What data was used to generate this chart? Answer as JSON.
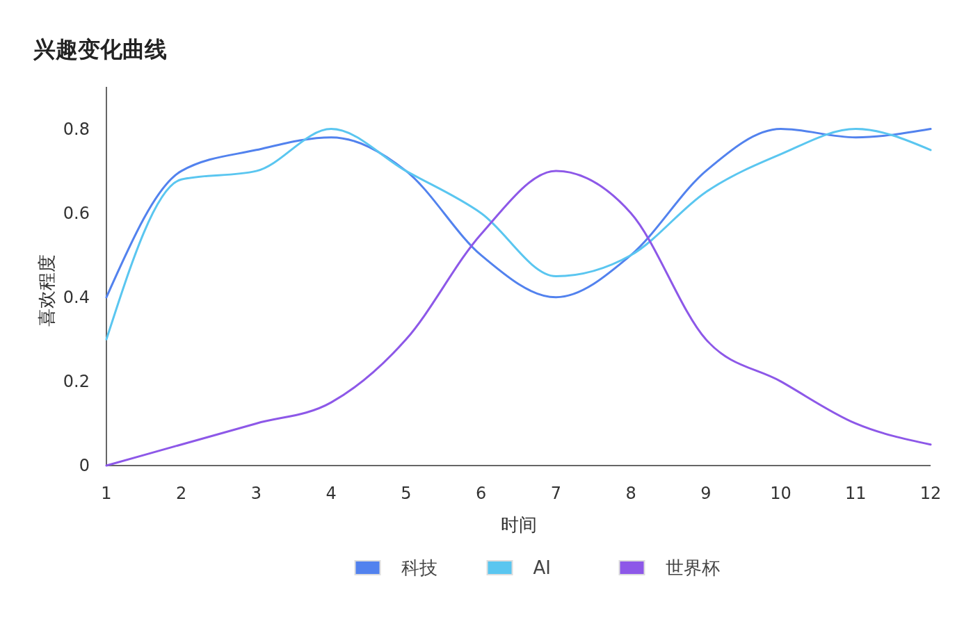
{
  "chart_data": {
    "type": "line",
    "title": "兴趣变化曲线",
    "xlabel": "时间",
    "ylabel": "喜欢程度",
    "x": [
      1,
      2,
      3,
      4,
      5,
      6,
      7,
      8,
      9,
      10,
      11,
      12
    ],
    "series": [
      {
        "name": "科技",
        "color": "#5282ee",
        "values": [
          0.4,
          0.7,
          0.75,
          0.78,
          0.7,
          0.5,
          0.4,
          0.5,
          0.7,
          0.8,
          0.78,
          0.8
        ]
      },
      {
        "name": "AI",
        "color": "#5ac6f0",
        "values": [
          0.3,
          0.68,
          0.7,
          0.8,
          0.7,
          0.6,
          0.45,
          0.5,
          0.65,
          0.74,
          0.8,
          0.75
        ]
      },
      {
        "name": "世界杯",
        "color": "#8d58e8",
        "values": [
          0,
          0.05,
          0.1,
          0.15,
          0.3,
          0.55,
          0.7,
          0.6,
          0.3,
          0.2,
          0.1,
          0.05
        ]
      }
    ],
    "xlim": [
      1,
      12
    ],
    "xticks": [
      1,
      2,
      3,
      4,
      5,
      6,
      7,
      8,
      9,
      10,
      11,
      12
    ],
    "ylim": [
      0,
      0.9
    ],
    "yticks": [
      0,
      0.2,
      0.4,
      0.6,
      0.8
    ],
    "grid": false,
    "legend": "bottom",
    "marker": "none",
    "line_style": "solid"
  }
}
